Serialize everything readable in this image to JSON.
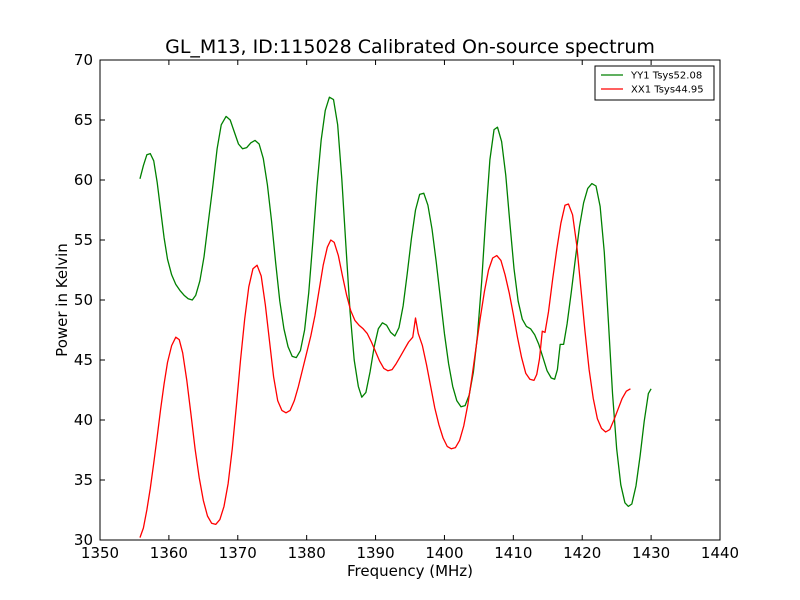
{
  "chart_data": {
    "type": "line",
    "title": "GL_M13, ID:115028 Calibrated On-source spectrum",
    "xlabel": "Frequency (MHz)",
    "ylabel": "Power in Kelvin",
    "xlim": [
      1350,
      1440
    ],
    "ylim": [
      30,
      70
    ],
    "xticks": [
      1350,
      1360,
      1370,
      1380,
      1390,
      1400,
      1410,
      1420,
      1430,
      1440
    ],
    "yticks": [
      30,
      35,
      40,
      45,
      50,
      55,
      60,
      65,
      70
    ],
    "grid": false,
    "legend_position": "top-right",
    "series": [
      {
        "name": "YY1 Tsys52.08",
        "color": "#008000",
        "points": [
          [
            1355.8,
            60.1
          ],
          [
            1356.3,
            61.2
          ],
          [
            1356.8,
            62.1
          ],
          [
            1357.3,
            62.2
          ],
          [
            1357.8,
            61.6
          ],
          [
            1358.3,
            59.8
          ],
          [
            1358.8,
            57.5
          ],
          [
            1359.3,
            55.2
          ],
          [
            1359.8,
            53.4
          ],
          [
            1360.4,
            52.1
          ],
          [
            1361.0,
            51.3
          ],
          [
            1361.6,
            50.8
          ],
          [
            1362.2,
            50.4
          ],
          [
            1362.8,
            50.1
          ],
          [
            1363.4,
            50.0
          ],
          [
            1363.9,
            50.4
          ],
          [
            1364.5,
            51.6
          ],
          [
            1365.1,
            53.6
          ],
          [
            1365.7,
            56.4
          ],
          [
            1366.4,
            59.6
          ],
          [
            1367.0,
            62.6
          ],
          [
            1367.6,
            64.6
          ],
          [
            1368.3,
            65.3
          ],
          [
            1368.9,
            65.0
          ],
          [
            1369.5,
            64.0
          ],
          [
            1370.1,
            63.0
          ],
          [
            1370.7,
            62.6
          ],
          [
            1371.3,
            62.7
          ],
          [
            1371.9,
            63.1
          ],
          [
            1372.5,
            63.3
          ],
          [
            1373.1,
            63.0
          ],
          [
            1373.7,
            61.8
          ],
          [
            1374.3,
            59.6
          ],
          [
            1374.9,
            56.6
          ],
          [
            1375.5,
            53.1
          ],
          [
            1376.1,
            49.9
          ],
          [
            1376.7,
            47.6
          ],
          [
            1377.3,
            46.1
          ],
          [
            1377.9,
            45.3
          ],
          [
            1378.5,
            45.2
          ],
          [
            1379.1,
            45.8
          ],
          [
            1379.7,
            47.5
          ],
          [
            1380.3,
            50.6
          ],
          [
            1380.9,
            54.9
          ],
          [
            1381.5,
            59.5
          ],
          [
            1382.1,
            63.3
          ],
          [
            1382.7,
            65.8
          ],
          [
            1383.3,
            66.9
          ],
          [
            1383.9,
            66.7
          ],
          [
            1384.5,
            64.6
          ],
          [
            1385.1,
            60.1
          ],
          [
            1385.7,
            54.5
          ],
          [
            1386.3,
            49.0
          ],
          [
            1386.9,
            45.0
          ],
          [
            1387.5,
            42.8
          ],
          [
            1388.0,
            41.9
          ],
          [
            1388.6,
            42.3
          ],
          [
            1389.2,
            44.0
          ],
          [
            1389.8,
            46.1
          ],
          [
            1390.4,
            47.6
          ],
          [
            1391.0,
            48.1
          ],
          [
            1391.6,
            47.9
          ],
          [
            1392.2,
            47.3
          ],
          [
            1392.8,
            47.0
          ],
          [
            1393.4,
            47.7
          ],
          [
            1394.0,
            49.5
          ],
          [
            1394.6,
            52.2
          ],
          [
            1395.2,
            55.1
          ],
          [
            1395.8,
            57.5
          ],
          [
            1396.4,
            58.8
          ],
          [
            1397.0,
            58.9
          ],
          [
            1397.6,
            57.9
          ],
          [
            1398.2,
            55.9
          ],
          [
            1398.8,
            53.2
          ],
          [
            1399.4,
            50.2
          ],
          [
            1400.0,
            47.2
          ],
          [
            1400.6,
            44.7
          ],
          [
            1401.2,
            42.8
          ],
          [
            1401.8,
            41.6
          ],
          [
            1402.4,
            41.1
          ],
          [
            1403.0,
            41.2
          ],
          [
            1403.6,
            42.1
          ],
          [
            1404.2,
            44.0
          ],
          [
            1404.8,
            47.1
          ],
          [
            1405.4,
            51.5
          ],
          [
            1406.0,
            56.9
          ],
          [
            1406.6,
            61.7
          ],
          [
            1407.2,
            64.2
          ],
          [
            1407.7,
            64.4
          ],
          [
            1408.3,
            63.2
          ],
          [
            1408.9,
            60.4
          ],
          [
            1409.5,
            56.4
          ],
          [
            1410.1,
            52.6
          ],
          [
            1410.7,
            49.9
          ],
          [
            1411.3,
            48.4
          ],
          [
            1411.9,
            47.8
          ],
          [
            1412.5,
            47.6
          ],
          [
            1413.1,
            47.1
          ],
          [
            1413.7,
            46.3
          ],
          [
            1414.3,
            45.2
          ],
          [
            1414.9,
            44.1
          ],
          [
            1415.5,
            43.5
          ],
          [
            1416.0,
            43.4
          ],
          [
            1416.4,
            44.2
          ],
          [
            1416.8,
            46.3
          ],
          [
            1417.3,
            46.3
          ],
          [
            1417.8,
            48.0
          ],
          [
            1418.4,
            50.6
          ],
          [
            1419.0,
            53.4
          ],
          [
            1419.6,
            56.1
          ],
          [
            1420.2,
            58.1
          ],
          [
            1420.8,
            59.3
          ],
          [
            1421.4,
            59.7
          ],
          [
            1422.0,
            59.5
          ],
          [
            1422.6,
            57.8
          ],
          [
            1423.2,
            54.0
          ],
          [
            1423.8,
            48.2
          ],
          [
            1424.4,
            42.2
          ],
          [
            1425.0,
            37.6
          ],
          [
            1425.6,
            34.6
          ],
          [
            1426.2,
            33.1
          ],
          [
            1426.7,
            32.8
          ],
          [
            1427.2,
            33.0
          ],
          [
            1427.8,
            34.5
          ],
          [
            1428.4,
            37.0
          ],
          [
            1429.0,
            39.9
          ],
          [
            1429.6,
            42.2
          ],
          [
            1430.0,
            42.6
          ]
        ]
      },
      {
        "name": "XX1 Tsys44.95",
        "color": "#ff0000",
        "points": [
          [
            1355.8,
            30.2
          ],
          [
            1356.3,
            31.0
          ],
          [
            1356.8,
            32.5
          ],
          [
            1357.3,
            34.3
          ],
          [
            1357.8,
            36.4
          ],
          [
            1358.3,
            38.6
          ],
          [
            1358.8,
            40.9
          ],
          [
            1359.3,
            43.0
          ],
          [
            1359.8,
            44.8
          ],
          [
            1360.4,
            46.2
          ],
          [
            1361.0,
            46.9
          ],
          [
            1361.5,
            46.7
          ],
          [
            1362.0,
            45.6
          ],
          [
            1362.6,
            43.3
          ],
          [
            1363.2,
            40.5
          ],
          [
            1363.8,
            37.6
          ],
          [
            1364.4,
            35.2
          ],
          [
            1365.0,
            33.3
          ],
          [
            1365.6,
            32.0
          ],
          [
            1366.2,
            31.4
          ],
          [
            1366.8,
            31.3
          ],
          [
            1367.4,
            31.7
          ],
          [
            1368.0,
            32.8
          ],
          [
            1368.6,
            34.7
          ],
          [
            1369.2,
            37.6
          ],
          [
            1369.8,
            41.2
          ],
          [
            1370.4,
            45.0
          ],
          [
            1371.0,
            48.4
          ],
          [
            1371.6,
            51.1
          ],
          [
            1372.2,
            52.6
          ],
          [
            1372.8,
            52.9
          ],
          [
            1373.4,
            52.0
          ],
          [
            1374.0,
            49.6
          ],
          [
            1374.6,
            46.6
          ],
          [
            1375.2,
            43.6
          ],
          [
            1375.8,
            41.6
          ],
          [
            1376.4,
            40.8
          ],
          [
            1377.0,
            40.6
          ],
          [
            1377.6,
            40.8
          ],
          [
            1378.2,
            41.6
          ],
          [
            1378.8,
            42.8
          ],
          [
            1379.4,
            44.2
          ],
          [
            1380.0,
            45.6
          ],
          [
            1380.6,
            47.0
          ],
          [
            1381.2,
            48.7
          ],
          [
            1381.8,
            50.8
          ],
          [
            1382.4,
            52.9
          ],
          [
            1383.0,
            54.4
          ],
          [
            1383.5,
            55.0
          ],
          [
            1384.0,
            54.8
          ],
          [
            1384.6,
            53.7
          ],
          [
            1385.2,
            52.0
          ],
          [
            1385.8,
            50.4
          ],
          [
            1386.4,
            49.1
          ],
          [
            1387.0,
            48.3
          ],
          [
            1387.6,
            47.9
          ],
          [
            1388.2,
            47.6
          ],
          [
            1388.8,
            47.2
          ],
          [
            1389.4,
            46.5
          ],
          [
            1390.0,
            45.7
          ],
          [
            1390.6,
            44.9
          ],
          [
            1391.2,
            44.3
          ],
          [
            1391.8,
            44.1
          ],
          [
            1392.4,
            44.2
          ],
          [
            1393.0,
            44.7
          ],
          [
            1393.6,
            45.3
          ],
          [
            1394.2,
            45.9
          ],
          [
            1394.8,
            46.5
          ],
          [
            1395.4,
            46.9
          ],
          [
            1395.8,
            48.5
          ],
          [
            1396.2,
            47.2
          ],
          [
            1396.8,
            46.2
          ],
          [
            1397.4,
            44.6
          ],
          [
            1398.0,
            42.8
          ],
          [
            1398.6,
            41.0
          ],
          [
            1399.2,
            39.6
          ],
          [
            1399.8,
            38.5
          ],
          [
            1400.4,
            37.8
          ],
          [
            1401.0,
            37.6
          ],
          [
            1401.6,
            37.7
          ],
          [
            1402.2,
            38.3
          ],
          [
            1402.8,
            39.5
          ],
          [
            1403.4,
            41.3
          ],
          [
            1404.0,
            43.6
          ],
          [
            1404.6,
            46.1
          ],
          [
            1405.2,
            48.5
          ],
          [
            1405.8,
            50.7
          ],
          [
            1406.4,
            52.5
          ],
          [
            1407.0,
            53.5
          ],
          [
            1407.6,
            53.7
          ],
          [
            1408.2,
            53.3
          ],
          [
            1408.8,
            52.1
          ],
          [
            1409.4,
            50.6
          ],
          [
            1410.0,
            48.8
          ],
          [
            1410.6,
            46.9
          ],
          [
            1411.2,
            45.2
          ],
          [
            1411.8,
            43.9
          ],
          [
            1412.4,
            43.4
          ],
          [
            1413.0,
            43.3
          ],
          [
            1413.4,
            43.8
          ],
          [
            1413.8,
            45.1
          ],
          [
            1414.2,
            47.4
          ],
          [
            1414.6,
            47.3
          ],
          [
            1415.1,
            49.0
          ],
          [
            1415.7,
            51.7
          ],
          [
            1416.3,
            54.2
          ],
          [
            1416.9,
            56.4
          ],
          [
            1417.5,
            57.9
          ],
          [
            1418.0,
            58.0
          ],
          [
            1418.6,
            57.1
          ],
          [
            1419.2,
            54.6
          ],
          [
            1419.8,
            51.0
          ],
          [
            1420.4,
            47.4
          ],
          [
            1421.0,
            44.2
          ],
          [
            1421.6,
            41.8
          ],
          [
            1422.2,
            40.1
          ],
          [
            1422.8,
            39.3
          ],
          [
            1423.4,
            39.0
          ],
          [
            1424.0,
            39.2
          ],
          [
            1424.6,
            40.0
          ],
          [
            1425.2,
            40.9
          ],
          [
            1425.8,
            41.8
          ],
          [
            1426.4,
            42.4
          ],
          [
            1427.0,
            42.6
          ]
        ]
      }
    ]
  }
}
